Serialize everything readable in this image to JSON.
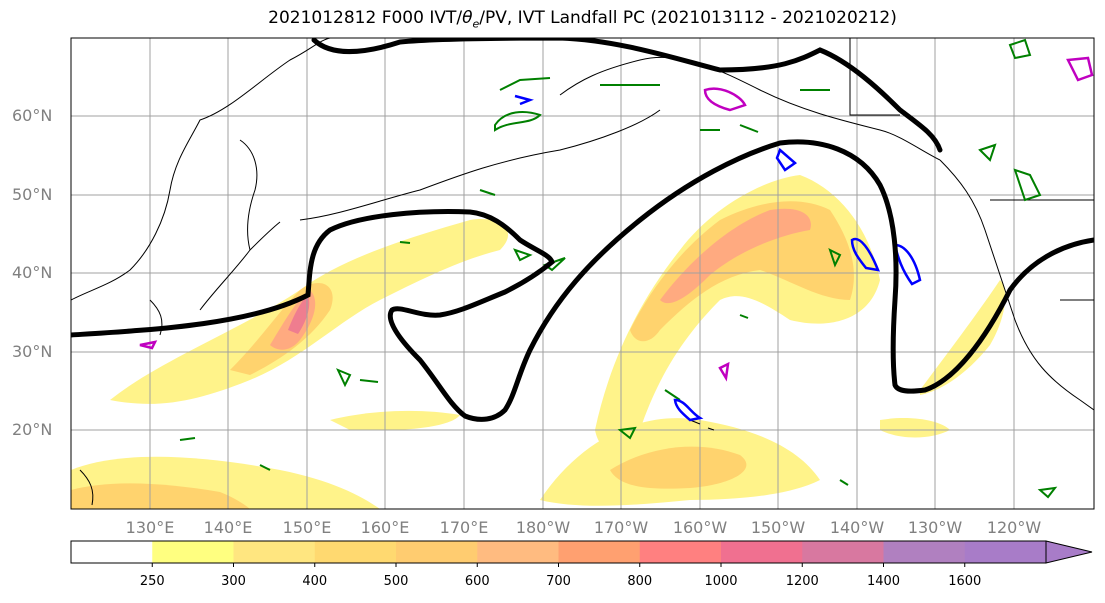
{
  "title": {
    "text_pre": "2021012812 F000 IVT/",
    "theta_symbol": "θ",
    "theta_sub": "e",
    "text_post": "/PV, IVT Landfall PC (2021013112 - 2021020212)"
  },
  "latitude_labels": [
    "60°N",
    "50°N",
    "40°N",
    "30°N",
    "20°N"
  ],
  "longitude_labels": [
    "130°E",
    "140°E",
    "150°E",
    "160°E",
    "170°E",
    "180°W",
    "170°W",
    "160°W",
    "150°W",
    "140°W",
    "130°W",
    "120°W"
  ],
  "colorbar": {
    "tick_labels": [
      "250",
      "300",
      "400",
      "500",
      "600",
      "700",
      "800",
      "1000",
      "1200",
      "1400",
      "1600"
    ],
    "colors": [
      "#ffffff",
      "#ffff80",
      "#ffe680",
      "#ffd970",
      "#ffcc70",
      "#ffbb80",
      "#ffa070",
      "#ff8080",
      "#f07090",
      "#d878a0",
      "#b080c0",
      "#a87cc8",
      "#a87cc8"
    ]
  },
  "legend_colors": {
    "ivt_light": "#fff38a",
    "ivt_mid": "#ffd36e",
    "ivt_high": "#ffaa80",
    "ivt_peak": "#ef7d8f",
    "contour_2pvu": "#000000",
    "theta_e": "#008000",
    "pv_pos": "#0000ff",
    "pv_neg": "#c000c0"
  },
  "map": {
    "projection": "PlateCarree",
    "lon_range": [
      120,
      -110
    ],
    "lat_range": [
      10,
      70
    ],
    "grid": true
  }
}
